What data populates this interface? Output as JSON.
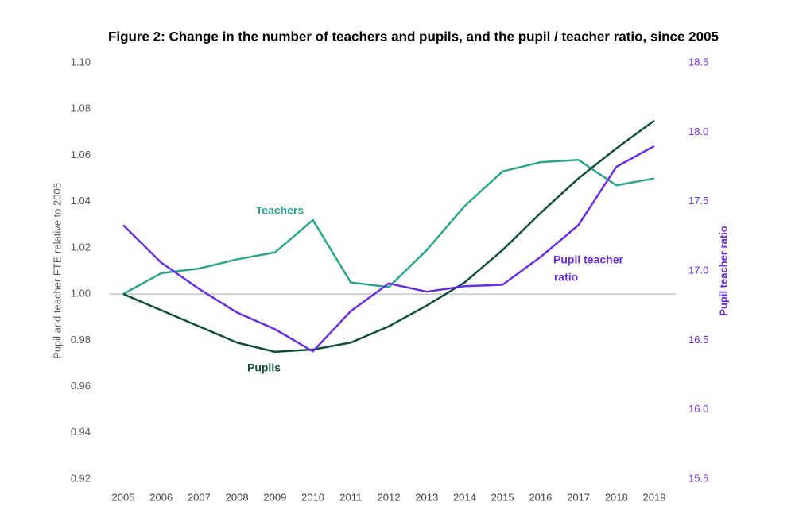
{
  "chart_data": {
    "type": "line",
    "title": "Figure 2: Change in the number of teachers and pupils, and the pupil / teacher ratio, since 2005",
    "y_label": "Pupil and teacher FTE  relative to 2005",
    "y2_label": "Pupil teacher ratio",
    "categories": [
      "2005",
      "2006",
      "2007",
      "2008",
      "2009",
      "2010",
      "2011",
      "2012",
      "2013",
      "2014",
      "2015",
      "2016",
      "2017",
      "2018",
      "2019"
    ],
    "ylim": [
      0.92,
      1.1
    ],
    "yticks": [
      0.92,
      0.94,
      0.96,
      0.98,
      {
        "value": 1.0,
        "label": "1.00"
      },
      1.02,
      1.04,
      1.06,
      1.08,
      {
        "value": 1.1,
        "label": "1.10"
      }
    ],
    "y2lim": [
      15.5,
      18.5
    ],
    "y2ticks": [
      15.5,
      {
        "value": 16,
        "label": "16.0"
      },
      16.5,
      {
        "value": 17,
        "label": "17.0"
      },
      17.5,
      {
        "value": 18,
        "label": "18.0"
      },
      18.5
    ],
    "y2_color": "#6a2be3",
    "hline": 1,
    "series": [
      {
        "color": "#2aa58e",
        "values": [
          1.0,
          1.009,
          1.011,
          1.015,
          1.018,
          1.032,
          1.005,
          1.003,
          1.019,
          1.038,
          1.053,
          1.057,
          1.058,
          1.047,
          1.05
        ]
      },
      {
        "color": "#0f4d3f",
        "values": [
          1.0,
          0.993,
          0.986,
          0.979,
          0.975,
          0.976,
          0.979,
          0.986,
          0.995,
          1.005,
          1.019,
          1.035,
          1.05,
          1.063,
          1.075
        ]
      },
      {
        "color": "#6a2be3",
        "axis": "y2",
        "values": [
          17.33,
          17.06,
          16.87,
          16.7,
          16.58,
          16.42,
          16.71,
          16.91,
          16.85,
          16.89,
          16.9,
          17.1,
          17.33,
          17.75,
          17.9
        ]
      }
    ],
    "annotations": [
      {
        "text": "Teachers",
        "color": "#2aa58e"
      },
      {
        "text": "Pupils",
        "color": "#0f4d3f"
      },
      {
        "text": "Pupil teacher",
        "color": "#6a2be3"
      },
      {
        "text": "ratio",
        "color": "#6a2be3"
      }
    ]
  }
}
